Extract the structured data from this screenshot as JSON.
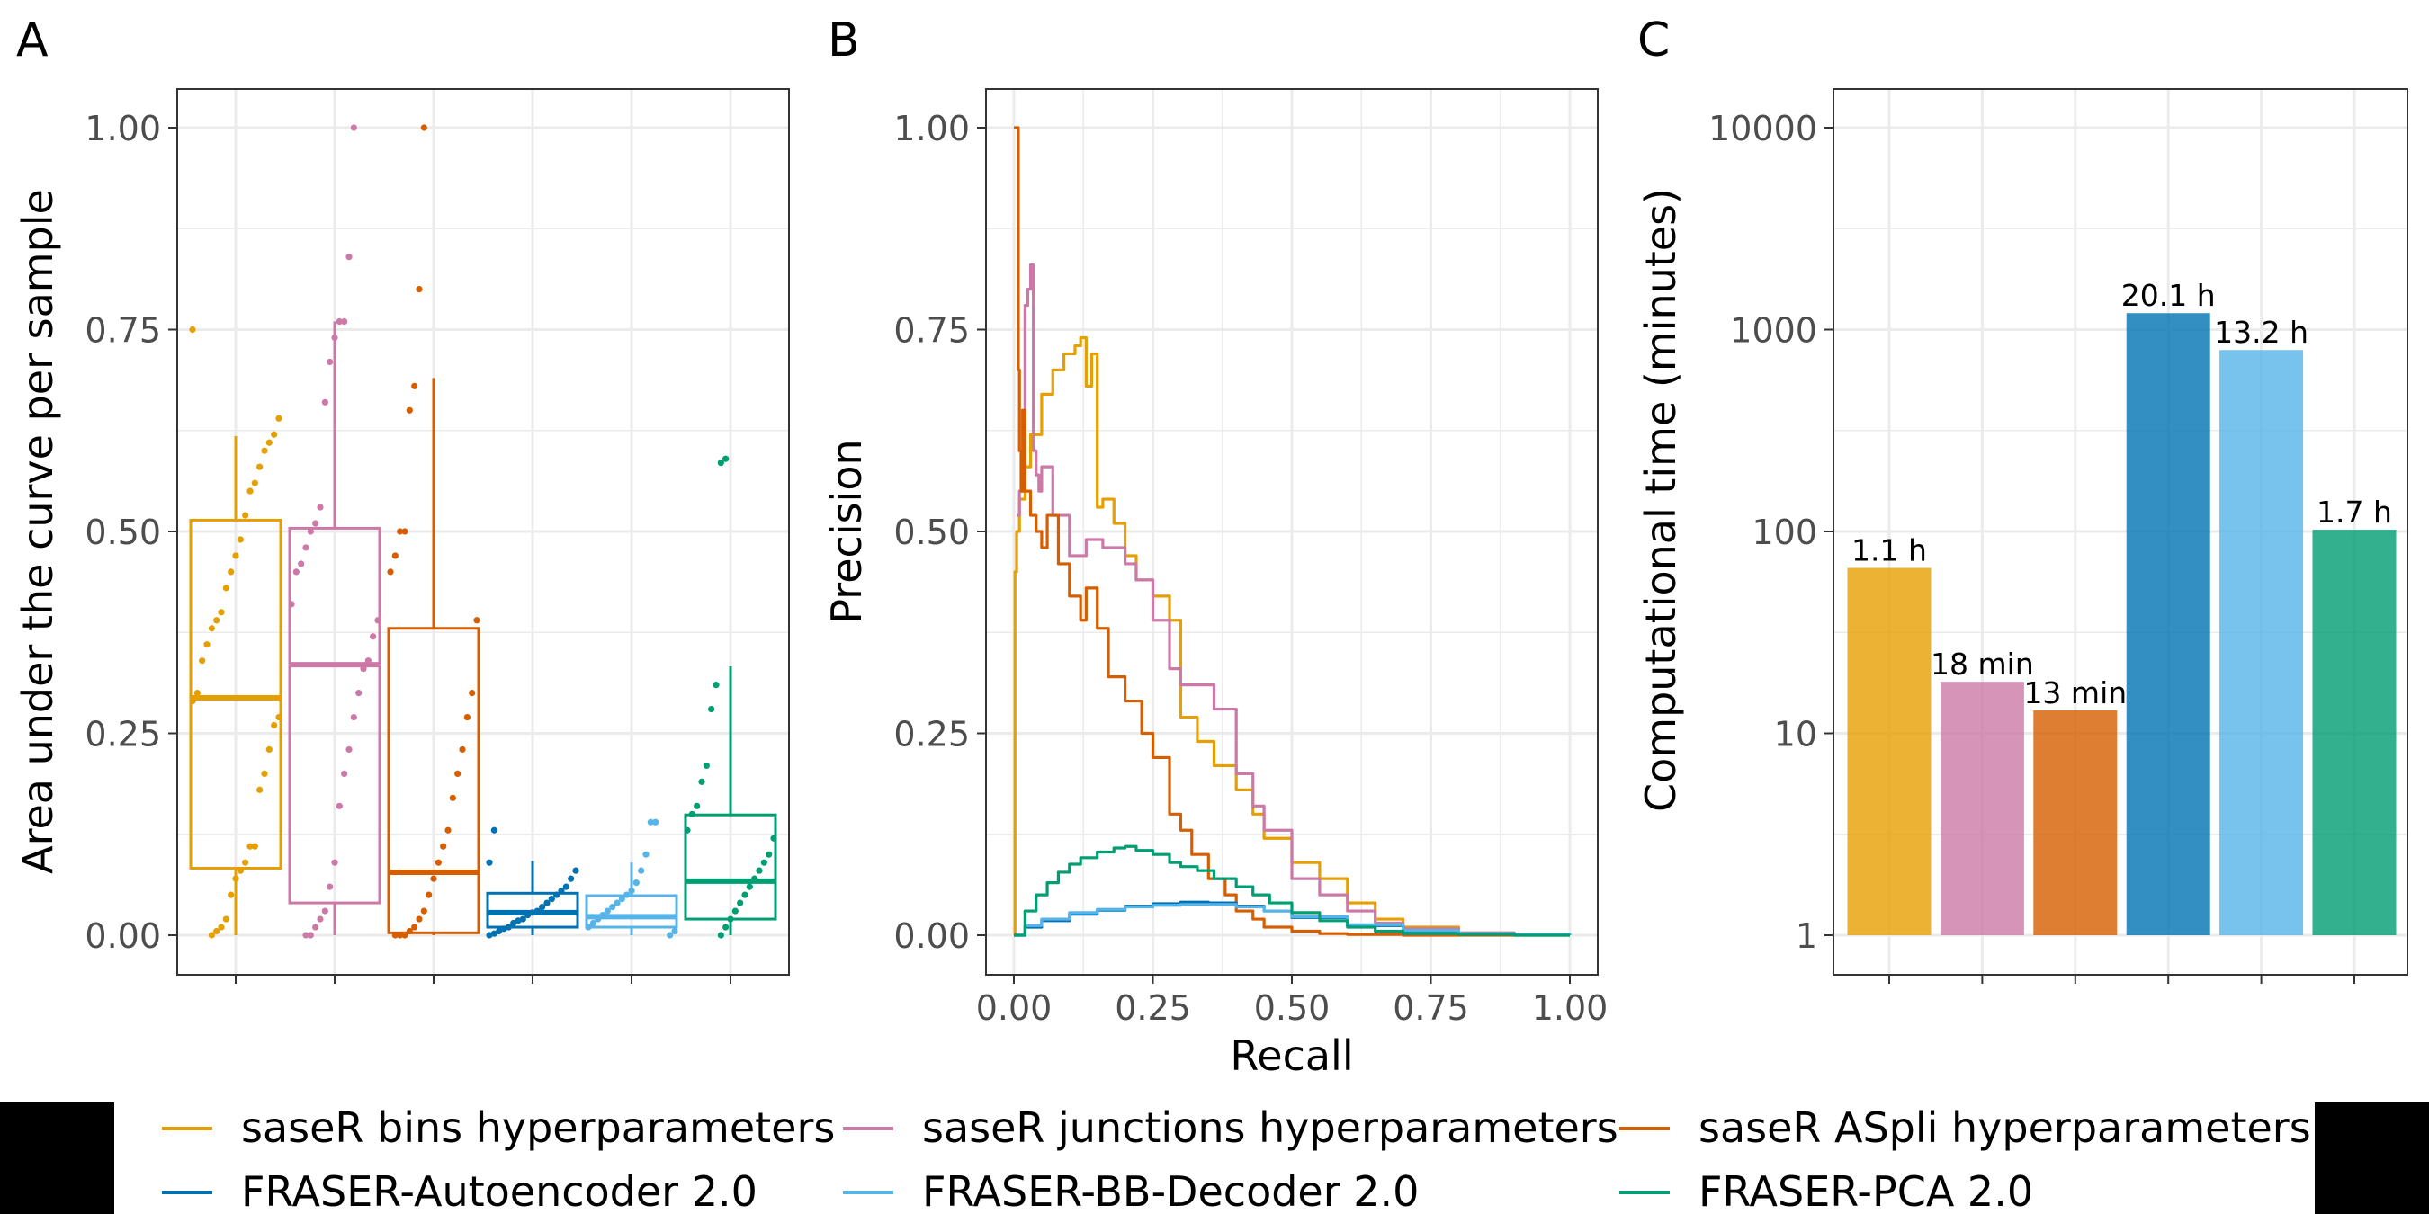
{
  "panels": {
    "a": "A",
    "b": "B",
    "c": "C"
  },
  "colors": {
    "saseR_bins": "#E69F00",
    "saseR_junctions": "#CC79A7",
    "saseR_aspli": "#D55E00",
    "fraser_ae": "#0072B2",
    "fraser_bb": "#56B4E9",
    "fraser_pca": "#009E73",
    "grid": "#EBEBEB",
    "axis_text": "#4D4D4D"
  },
  "legend": {
    "items": [
      {
        "label": "saseR bins hyperparameters",
        "color": "#E69F00"
      },
      {
        "label": "saseR junctions hyperparameters",
        "color": "#CC79A7"
      },
      {
        "label": "saseR ASpli hyperparameters",
        "color": "#D55E00"
      },
      {
        "label": "FRASER-Autoencoder 2.0",
        "color": "#0072B2"
      },
      {
        "label": "FRASER-BB-Decoder 2.0",
        "color": "#56B4E9"
      },
      {
        "label": "FRASER-PCA 2.0",
        "color": "#009E73"
      }
    ]
  },
  "chart_data": [
    {
      "panel": "A",
      "type": "box",
      "ylabel": "Area under the curve per sample",
      "ylim": [
        0,
        1
      ],
      "yticks": [
        "0.00",
        "0.25",
        "0.50",
        "0.75",
        "1.00"
      ],
      "grid": true,
      "groups": [
        {
          "method": "saseR bins hyperparameters",
          "q1": 0.083,
          "median": 0.294,
          "q3": 0.514,
          "whisker_low": 0.0,
          "whisker_high": 0.618,
          "points": [
            0.75,
            0.64,
            0.62,
            0.61,
            0.6,
            0.58,
            0.56,
            0.55,
            0.52,
            0.49,
            0.47,
            0.45,
            0.43,
            0.4,
            0.39,
            0.38,
            0.36,
            0.34,
            0.3,
            0.29,
            0.27,
            0.26,
            0.23,
            0.2,
            0.18,
            0.11,
            0.11,
            0.09,
            0.08,
            0.07,
            0.05,
            0.02,
            0.01,
            0.005,
            0.0
          ]
        },
        {
          "method": "saseR junctions hyperparameters",
          "q1": 0.04,
          "median": 0.335,
          "q3": 0.504,
          "whisker_low": 0.0,
          "whisker_high": 0.76,
          "points": [
            1.0,
            0.84,
            0.76,
            0.76,
            0.74,
            0.71,
            0.66,
            0.53,
            0.51,
            0.5,
            0.48,
            0.46,
            0.45,
            0.41,
            0.39,
            0.37,
            0.34,
            0.33,
            0.3,
            0.27,
            0.23,
            0.2,
            0.16,
            0.09,
            0.06,
            0.03,
            0.02,
            0.01,
            0.0,
            0.0
          ]
        },
        {
          "method": "saseR ASpli hyperparameters",
          "q1": 0.003,
          "median": 0.078,
          "q3": 0.38,
          "whisker_low": 0.0,
          "whisker_high": 0.69,
          "points": [
            1.0,
            0.8,
            0.68,
            0.65,
            0.5,
            0.5,
            0.47,
            0.45,
            0.39,
            0.3,
            0.27,
            0.23,
            0.2,
            0.17,
            0.13,
            0.11,
            0.09,
            0.07,
            0.05,
            0.03,
            0.02,
            0.01,
            0.005,
            0.0,
            0.0,
            0.0
          ]
        },
        {
          "method": "FRASER-Autoencoder 2.0",
          "q1": 0.01,
          "median": 0.028,
          "q3": 0.052,
          "whisker_low": 0.0,
          "whisker_high": 0.092,
          "points": [
            0.13,
            0.09,
            0.08,
            0.07,
            0.06,
            0.055,
            0.05,
            0.045,
            0.04,
            0.035,
            0.03,
            0.028,
            0.025,
            0.02,
            0.018,
            0.015,
            0.01,
            0.008,
            0.005,
            0.002,
            0.0
          ]
        },
        {
          "method": "FRASER-BB-Decoder 2.0",
          "q1": 0.01,
          "median": 0.023,
          "q3": 0.049,
          "whisker_low": 0.0,
          "whisker_high": 0.09,
          "points": [
            0.14,
            0.14,
            0.1,
            0.08,
            0.065,
            0.055,
            0.05,
            0.045,
            0.04,
            0.035,
            0.03,
            0.025,
            0.02,
            0.015,
            0.01,
            0.005,
            0.0
          ]
        },
        {
          "method": "FRASER-PCA 2.0",
          "q1": 0.02,
          "median": 0.067,
          "q3": 0.149,
          "whisker_low": 0.0,
          "whisker_high": 0.333,
          "points": [
            0.59,
            0.585,
            0.31,
            0.28,
            0.21,
            0.19,
            0.16,
            0.15,
            0.13,
            0.12,
            0.1,
            0.09,
            0.08,
            0.07,
            0.06,
            0.05,
            0.04,
            0.03,
            0.02,
            0.01,
            0.0
          ]
        }
      ]
    },
    {
      "panel": "B",
      "type": "line",
      "xlabel": "Recall",
      "ylabel": "Precision",
      "xlim": [
        0,
        1
      ],
      "ylim": [
        0,
        1
      ],
      "xticks": [
        "0.00",
        "0.25",
        "0.50",
        "0.75",
        "1.00"
      ],
      "yticks": [
        "0.00",
        "0.25",
        "0.50",
        "0.75",
        "1.00"
      ],
      "grid": true,
      "series": [
        {
          "method": "saseR bins hyperparameters",
          "x": [
            0,
            0.002,
            0.005,
            0.01,
            0.02,
            0.03,
            0.05,
            0.07,
            0.09,
            0.11,
            0.12,
            0.13,
            0.14,
            0.15,
            0.16,
            0.18,
            0.2,
            0.22,
            0.25,
            0.28,
            0.3,
            0.33,
            0.36,
            0.4,
            0.43,
            0.45,
            0.5,
            0.55,
            0.6,
            0.65,
            0.7,
            0.8,
            0.9,
            1.0
          ],
          "y": [
            0,
            0.45,
            0.5,
            0.54,
            0.58,
            0.62,
            0.67,
            0.7,
            0.72,
            0.73,
            0.74,
            0.68,
            0.72,
            0.53,
            0.54,
            0.51,
            0.47,
            0.44,
            0.42,
            0.39,
            0.27,
            0.24,
            0.21,
            0.18,
            0.15,
            0.12,
            0.09,
            0.07,
            0.04,
            0.02,
            0.01,
            0.003,
            0.001,
            0
          ]
        },
        {
          "method": "saseR junctions hyperparameters",
          "x": [
            0.005,
            0.01,
            0.015,
            0.02,
            0.025,
            0.03,
            0.035,
            0.04,
            0.045,
            0.05,
            0.07,
            0.1,
            0.13,
            0.16,
            0.2,
            0.22,
            0.25,
            0.28,
            0.3,
            0.33,
            0.36,
            0.4,
            0.43,
            0.45,
            0.5,
            0.55,
            0.6,
            0.65,
            0.7,
            0.8,
            0.9,
            1.0
          ],
          "y": [
            0.52,
            0.55,
            0.65,
            0.78,
            0.8,
            0.83,
            0.6,
            0.57,
            0.55,
            0.58,
            0.52,
            0.47,
            0.49,
            0.48,
            0.46,
            0.44,
            0.39,
            0.33,
            0.31,
            0.31,
            0.28,
            0.2,
            0.16,
            0.13,
            0.07,
            0.05,
            0.03,
            0.015,
            0.008,
            0.003,
            0.001,
            0
          ]
        },
        {
          "method": "saseR ASpli hyperparameters",
          "x": [
            0.0,
            0.005,
            0.008,
            0.01,
            0.013,
            0.016,
            0.02,
            0.03,
            0.04,
            0.05,
            0.06,
            0.08,
            0.1,
            0.12,
            0.13,
            0.15,
            0.17,
            0.2,
            0.23,
            0.25,
            0.28,
            0.3,
            0.32,
            0.35,
            0.38,
            0.4,
            0.43,
            0.45,
            0.5,
            0.55,
            0.6,
            0.7,
            0.8,
            1.0
          ],
          "y": [
            1.0,
            1.0,
            0.7,
            0.6,
            0.55,
            0.65,
            0.55,
            0.52,
            0.5,
            0.48,
            0.52,
            0.46,
            0.42,
            0.39,
            0.43,
            0.38,
            0.32,
            0.29,
            0.25,
            0.22,
            0.15,
            0.13,
            0.1,
            0.07,
            0.05,
            0.03,
            0.02,
            0.01,
            0.005,
            0.002,
            0.001,
            0,
            0,
            0
          ]
        },
        {
          "method": "FRASER-Autoencoder 2.0",
          "x": [
            0.0,
            0.02,
            0.05,
            0.1,
            0.15,
            0.2,
            0.25,
            0.3,
            0.35,
            0.4,
            0.45,
            0.5,
            0.6,
            0.7,
            0.8,
            0.9,
            1.0
          ],
          "y": [
            0.0,
            0.01,
            0.018,
            0.026,
            0.031,
            0.036,
            0.039,
            0.041,
            0.04,
            0.036,
            0.03,
            0.022,
            0.012,
            0.005,
            0.002,
            0.001,
            0
          ]
        },
        {
          "method": "FRASER-BB-Decoder 2.0",
          "x": [
            0.0,
            0.02,
            0.05,
            0.1,
            0.15,
            0.2,
            0.25,
            0.3,
            0.35,
            0.4,
            0.45,
            0.5,
            0.6,
            0.7,
            0.8,
            0.9,
            1.0
          ],
          "y": [
            0.0,
            0.012,
            0.02,
            0.028,
            0.032,
            0.035,
            0.037,
            0.038,
            0.038,
            0.035,
            0.03,
            0.023,
            0.013,
            0.006,
            0.002,
            0.001,
            0
          ]
        },
        {
          "method": "FRASER-PCA 2.0",
          "x": [
            0.0,
            0.02,
            0.04,
            0.06,
            0.08,
            0.1,
            0.12,
            0.15,
            0.18,
            0.2,
            0.22,
            0.25,
            0.28,
            0.3,
            0.33,
            0.36,
            0.4,
            0.43,
            0.46,
            0.5,
            0.55,
            0.6,
            0.65,
            0.7,
            0.8,
            0.9,
            1.0
          ],
          "y": [
            0.0,
            0.03,
            0.05,
            0.065,
            0.078,
            0.088,
            0.096,
            0.103,
            0.108,
            0.11,
            0.105,
            0.1,
            0.09,
            0.085,
            0.08,
            0.07,
            0.06,
            0.05,
            0.04,
            0.028,
            0.018,
            0.01,
            0.005,
            0.002,
            0.001,
            0,
            0
          ]
        }
      ]
    },
    {
      "panel": "C",
      "type": "bar",
      "ylabel": "Computational time (minutes)",
      "yscale": "log10",
      "ylim": [
        1,
        10000
      ],
      "yticks": [
        "1",
        "10",
        "100",
        "1000",
        "10000"
      ],
      "grid": true,
      "categories": [
        "saseR bins hyperparameters",
        "saseR junctions hyperparameters",
        "saseR ASpli hyperparameters",
        "FRASER-Autoencoder 2.0",
        "FRASER-BB-Decoder 2.0",
        "FRASER-PCA 2.0"
      ],
      "values": [
        66,
        18,
        13,
        1206,
        792,
        102
      ],
      "labels": [
        "1.1 h",
        "18 min",
        "13 min",
        "20.1 h",
        "13.2 h",
        "1.7 h"
      ]
    }
  ]
}
